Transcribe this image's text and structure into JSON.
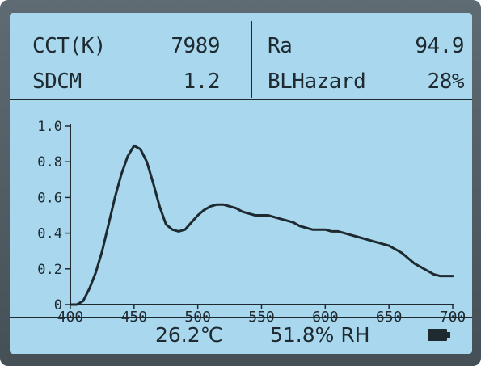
{
  "readings": {
    "cct_label": "CCT(K)",
    "cct_value": "7989",
    "ra_label": "Ra",
    "ra_value": "94.9",
    "sdcm_label": "SDCM",
    "sdcm_value": "1.2",
    "blhazard_label": "BLHazard",
    "blhazard_value": "28%"
  },
  "status": {
    "temperature": "26.2℃",
    "humidity": "51.8% RH",
    "battery_icon": "battery-icon"
  },
  "colors": {
    "screen_background": "#a9d7ee",
    "ink": "#1e2a30",
    "bezel": "#4e5a61"
  },
  "chart_data": {
    "type": "line",
    "title": "",
    "xlabel": "",
    "ylabel": "",
    "xlim": [
      400,
      700
    ],
    "ylim": [
      0,
      1.0
    ],
    "x_ticks": [
      "400",
      "450",
      "500",
      "550",
      "600",
      "650",
      "700"
    ],
    "y_ticks": [
      "0",
      "0.2",
      "0.4",
      "0.6",
      "0.8",
      "1.0"
    ],
    "grid": false,
    "series": [
      {
        "x": [
          400,
          405,
          410,
          415,
          420,
          425,
          430,
          435,
          440,
          445,
          450,
          455,
          460,
          465,
          470,
          475,
          480,
          485,
          490,
          495,
          500,
          505,
          510,
          515,
          520,
          525,
          530,
          535,
          540,
          545,
          550,
          555,
          560,
          565,
          570,
          575,
          580,
          585,
          590,
          595,
          600,
          605,
          610,
          615,
          620,
          625,
          630,
          635,
          640,
          645,
          650,
          655,
          660,
          665,
          670,
          675,
          680,
          685,
          690,
          695,
          700
        ],
        "y": [
          0.0,
          0.0,
          0.02,
          0.09,
          0.18,
          0.3,
          0.45,
          0.6,
          0.73,
          0.83,
          0.89,
          0.87,
          0.8,
          0.68,
          0.55,
          0.45,
          0.42,
          0.41,
          0.42,
          0.46,
          0.5,
          0.53,
          0.55,
          0.56,
          0.56,
          0.55,
          0.54,
          0.52,
          0.51,
          0.5,
          0.5,
          0.5,
          0.49,
          0.48,
          0.47,
          0.46,
          0.44,
          0.43,
          0.42,
          0.42,
          0.42,
          0.41,
          0.41,
          0.4,
          0.39,
          0.38,
          0.37,
          0.36,
          0.35,
          0.34,
          0.33,
          0.31,
          0.29,
          0.26,
          0.23,
          0.21,
          0.19,
          0.17,
          0.16,
          0.16,
          0.16
        ]
      }
    ]
  }
}
